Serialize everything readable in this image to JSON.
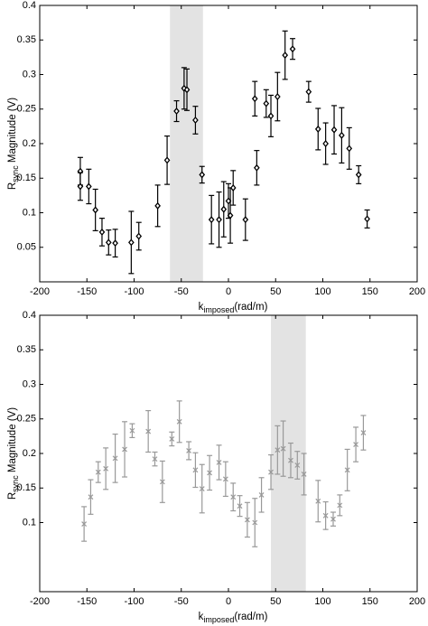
{
  "chart_data": [
    {
      "type": "scatter",
      "marker": "diamond",
      "color": "#000000",
      "xlabel_parts": [
        "k",
        "imposed",
        "(rad/m)"
      ],
      "ylabel_parts": [
        "R",
        "sync",
        " Magnitude (V)"
      ],
      "highlight": [
        -62,
        -27
      ],
      "highlight_color": "#e3e3e3",
      "xlim": [
        -200,
        200
      ],
      "xticks": [
        -200,
        -150,
        -100,
        -50,
        0,
        50,
        100,
        150,
        200
      ],
      "ylim": [
        0,
        0.4
      ],
      "yticks": [
        0.05,
        0.1,
        0.15,
        0.2,
        0.25,
        0.3,
        0.35,
        0.4
      ],
      "x": [
        -157,
        -157,
        -148,
        -141,
        -134,
        -127,
        -120,
        -103,
        -95,
        -75,
        -65,
        -55,
        -47,
        -44,
        -35,
        -28,
        -18,
        -10,
        -5,
        0,
        2,
        5,
        18,
        28,
        30,
        40,
        45,
        52,
        60,
        68,
        85,
        95,
        103,
        112,
        120,
        128,
        138,
        147
      ],
      "values": [
        0.16,
        0.138,
        0.138,
        0.104,
        0.072,
        0.057,
        0.056,
        0.057,
        0.066,
        0.11,
        0.176,
        0.247,
        0.28,
        0.278,
        0.234,
        0.155,
        0.09,
        0.09,
        0.105,
        0.117,
        0.096,
        0.136,
        0.09,
        0.265,
        0.165,
        0.258,
        0.24,
        0.268,
        0.328,
        0.337,
        0.275,
        0.221,
        0.2,
        0.22,
        0.212,
        0.193,
        0.155,
        0.091
      ],
      "errors": [
        0.02,
        0.02,
        0.025,
        0.03,
        0.02,
        0.018,
        0.02,
        0.045,
        0.02,
        0.03,
        0.035,
        0.015,
        0.03,
        0.03,
        0.02,
        0.012,
        0.035,
        0.04,
        0.04,
        0.025,
        0.04,
        0.025,
        0.03,
        0.025,
        0.025,
        0.02,
        0.03,
        0.035,
        0.035,
        0.015,
        0.015,
        0.03,
        0.03,
        0.035,
        0.04,
        0.03,
        0.013,
        0.013
      ]
    },
    {
      "type": "scatter",
      "marker": "x",
      "color": "#999999",
      "xlabel_parts": [
        "k",
        "imposed",
        "(rad/m)"
      ],
      "ylabel_parts": [
        "R",
        "sync",
        " Magnitude (V)"
      ],
      "highlight": [
        45,
        82
      ],
      "highlight_color": "#e3e3e3",
      "xlim": [
        -200,
        200
      ],
      "xticks": [
        -200,
        -150,
        -100,
        -50,
        0,
        50,
        100,
        150,
        200
      ],
      "ylim": [
        0,
        0.4
      ],
      "yticks": [
        0.1,
        0.15,
        0.2,
        0.25,
        0.3,
        0.35,
        0.4
      ],
      "x": [
        -153,
        -146,
        -138,
        -130,
        -120,
        -110,
        -102,
        -85,
        -78,
        -70,
        -60,
        -52,
        -42,
        -35,
        -28,
        -20,
        -10,
        -3,
        5,
        12,
        20,
        28,
        35,
        45,
        52,
        58,
        66,
        73,
        80,
        95,
        103,
        111,
        118,
        126,
        135,
        143
      ],
      "values": [
        0.098,
        0.137,
        0.173,
        0.178,
        0.193,
        0.206,
        0.233,
        0.232,
        0.192,
        0.159,
        0.221,
        0.246,
        0.204,
        0.176,
        0.149,
        0.172,
        0.187,
        0.163,
        0.137,
        0.124,
        0.104,
        0.1,
        0.14,
        0.173,
        0.205,
        0.207,
        0.19,
        0.183,
        0.17,
        0.131,
        0.11,
        0.105,
        0.125,
        0.176,
        0.213,
        0.23
      ],
      "errors": [
        0.025,
        0.025,
        0.015,
        0.03,
        0.035,
        0.04,
        0.01,
        0.03,
        0.01,
        0.03,
        0.01,
        0.03,
        0.013,
        0.025,
        0.035,
        0.025,
        0.025,
        0.025,
        0.02,
        0.015,
        0.025,
        0.035,
        0.025,
        0.025,
        0.035,
        0.04,
        0.025,
        0.02,
        0.03,
        0.03,
        0.02,
        0.01,
        0.015,
        0.03,
        0.025,
        0.025
      ]
    }
  ]
}
